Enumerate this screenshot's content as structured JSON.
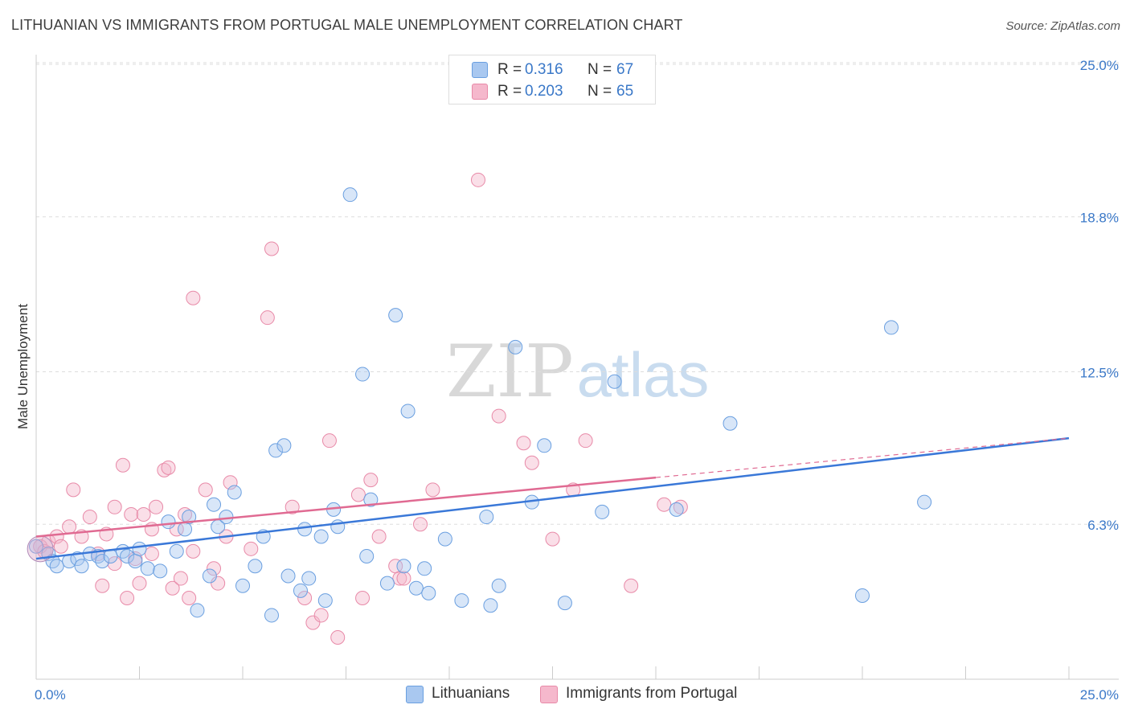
{
  "title": "LITHUANIAN VS IMMIGRANTS FROM PORTUGAL MALE UNEMPLOYMENT CORRELATION CHART",
  "source": "Source: ZipAtlas.com",
  "watermark": {
    "zip": "ZIP",
    "atlas": "atlas"
  },
  "legend": {
    "rows": [
      {
        "r_label": "R =",
        "r_value": "0.316",
        "n_label": "N =",
        "n_value": "67"
      },
      {
        "r_label": "R =",
        "r_value": "0.203",
        "n_label": "N =",
        "n_value": "65"
      }
    ]
  },
  "bottom_legend": [
    "Lithuanians",
    "Immigrants from Portugal"
  ],
  "colors": {
    "blue_fill": "#a9c8f0",
    "blue_stroke": "#6a9fe0",
    "blue_line": "#3a78d8",
    "pink_fill": "#f5b8cc",
    "pink_stroke": "#e88aa8",
    "pink_line": "#e06a92",
    "tick_text": "#3a78c8",
    "grid": "#dddddd"
  },
  "chart_data": {
    "type": "scatter",
    "title": "LITHUANIAN VS IMMIGRANTS FROM PORTUGAL MALE UNEMPLOYMENT CORRELATION CHART",
    "xlabel": "",
    "ylabel": "Male Unemployment",
    "xlim": [
      0,
      25
    ],
    "ylim": [
      0,
      25
    ],
    "x_tick_labels": [
      "0.0%",
      "25.0%"
    ],
    "y_ticks": [
      6.3,
      12.5,
      18.8,
      25.0
    ],
    "y_tick_labels": [
      "6.3%",
      "12.5%",
      "18.8%",
      "25.0%"
    ],
    "series": [
      {
        "name": "Lithuanians",
        "r": 0.316,
        "n": 67,
        "trend": {
          "x": [
            0,
            25
          ],
          "y": [
            4.9,
            9.8
          ]
        },
        "points": [
          [
            0.0,
            5.4
          ],
          [
            0.3,
            5.1
          ],
          [
            0.4,
            4.8
          ],
          [
            0.5,
            4.6
          ],
          [
            0.8,
            4.8
          ],
          [
            1.0,
            4.9
          ],
          [
            1.1,
            4.6
          ],
          [
            1.3,
            5.1
          ],
          [
            1.5,
            5.0
          ],
          [
            1.6,
            4.8
          ],
          [
            1.8,
            5.0
          ],
          [
            2.1,
            5.2
          ],
          [
            2.2,
            5.0
          ],
          [
            2.4,
            4.8
          ],
          [
            2.5,
            5.3
          ],
          [
            2.7,
            4.5
          ],
          [
            3.0,
            4.4
          ],
          [
            3.2,
            6.4
          ],
          [
            3.4,
            5.2
          ],
          [
            3.6,
            6.1
          ],
          [
            3.7,
            6.6
          ],
          [
            3.9,
            2.8
          ],
          [
            4.2,
            4.2
          ],
          [
            4.3,
            7.1
          ],
          [
            4.4,
            6.2
          ],
          [
            4.6,
            6.6
          ],
          [
            4.8,
            7.6
          ],
          [
            5.0,
            3.8
          ],
          [
            5.3,
            4.6
          ],
          [
            5.5,
            5.8
          ],
          [
            5.7,
            2.6
          ],
          [
            5.8,
            9.3
          ],
          [
            6.0,
            9.5
          ],
          [
            6.1,
            4.2
          ],
          [
            6.4,
            3.6
          ],
          [
            6.5,
            6.1
          ],
          [
            6.6,
            4.1
          ],
          [
            6.9,
            5.8
          ],
          [
            7.0,
            3.2
          ],
          [
            7.2,
            6.9
          ],
          [
            7.3,
            6.2
          ],
          [
            7.6,
            19.7
          ],
          [
            7.9,
            12.4
          ],
          [
            8.0,
            5.0
          ],
          [
            8.1,
            7.3
          ],
          [
            8.5,
            3.9
          ],
          [
            8.7,
            14.8
          ],
          [
            8.9,
            4.6
          ],
          [
            9.0,
            10.9
          ],
          [
            9.2,
            3.7
          ],
          [
            9.4,
            4.5
          ],
          [
            9.5,
            3.5
          ],
          [
            9.9,
            5.7
          ],
          [
            10.3,
            3.2
          ],
          [
            10.9,
            6.6
          ],
          [
            11.0,
            3.0
          ],
          [
            11.2,
            3.8
          ],
          [
            11.6,
            13.5
          ],
          [
            12.0,
            7.2
          ],
          [
            12.3,
            9.5
          ],
          [
            12.8,
            3.1
          ],
          [
            13.7,
            6.8
          ],
          [
            14.0,
            12.1
          ],
          [
            15.5,
            6.9
          ],
          [
            16.8,
            10.4
          ],
          [
            20.0,
            3.4
          ],
          [
            20.7,
            14.3
          ],
          [
            21.5,
            7.2
          ]
        ]
      },
      {
        "name": "Immigrants from Portugal",
        "r": 0.203,
        "n": 65,
        "trend": {
          "x": [
            0,
            15
          ],
          "y": [
            5.8,
            8.2
          ]
        },
        "trend_dashed": {
          "x": [
            15,
            25
          ],
          "y": [
            8.2,
            9.8
          ]
        },
        "points": [
          [
            0.1,
            5.4
          ],
          [
            0.2,
            5.2
          ],
          [
            0.3,
            5.6
          ],
          [
            0.5,
            5.8
          ],
          [
            0.6,
            5.4
          ],
          [
            0.8,
            6.2
          ],
          [
            0.9,
            7.7
          ],
          [
            1.1,
            5.8
          ],
          [
            1.3,
            6.6
          ],
          [
            1.5,
            5.1
          ],
          [
            1.6,
            3.8
          ],
          [
            1.7,
            5.9
          ],
          [
            1.9,
            4.7
          ],
          [
            1.9,
            7.0
          ],
          [
            2.1,
            8.7
          ],
          [
            2.2,
            3.3
          ],
          [
            2.3,
            6.7
          ],
          [
            2.4,
            4.9
          ],
          [
            2.5,
            3.9
          ],
          [
            2.6,
            6.7
          ],
          [
            2.8,
            5.1
          ],
          [
            2.8,
            6.1
          ],
          [
            2.9,
            7.0
          ],
          [
            3.1,
            8.5
          ],
          [
            3.2,
            8.6
          ],
          [
            3.3,
            3.7
          ],
          [
            3.4,
            6.1
          ],
          [
            3.5,
            4.1
          ],
          [
            3.6,
            6.7
          ],
          [
            3.7,
            3.3
          ],
          [
            3.8,
            5.2
          ],
          [
            3.8,
            15.5
          ],
          [
            4.1,
            7.7
          ],
          [
            4.3,
            4.5
          ],
          [
            4.4,
            3.9
          ],
          [
            4.6,
            5.8
          ],
          [
            4.7,
            8.0
          ],
          [
            5.2,
            5.3
          ],
          [
            5.6,
            14.7
          ],
          [
            5.7,
            17.5
          ],
          [
            6.2,
            7.0
          ],
          [
            6.5,
            3.3
          ],
          [
            6.7,
            2.3
          ],
          [
            6.9,
            2.6
          ],
          [
            7.1,
            9.7
          ],
          [
            7.3,
            1.7
          ],
          [
            7.8,
            7.5
          ],
          [
            7.9,
            3.3
          ],
          [
            8.1,
            8.1
          ],
          [
            8.3,
            5.8
          ],
          [
            8.7,
            4.6
          ],
          [
            8.8,
            4.1
          ],
          [
            8.9,
            4.1
          ],
          [
            9.6,
            7.7
          ],
          [
            9.3,
            6.3
          ],
          [
            10.7,
            20.3
          ],
          [
            11.2,
            10.7
          ],
          [
            11.8,
            9.6
          ],
          [
            12.0,
            8.8
          ],
          [
            12.5,
            5.7
          ],
          [
            13.0,
            7.7
          ],
          [
            13.3,
            9.7
          ],
          [
            14.4,
            3.8
          ],
          [
            15.2,
            7.1
          ],
          [
            15.6,
            7.0
          ]
        ]
      }
    ]
  }
}
